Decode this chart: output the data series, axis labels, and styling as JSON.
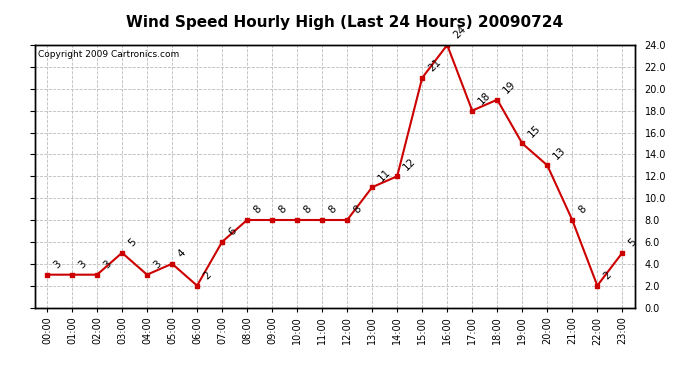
{
  "title": "Wind Speed Hourly High (Last 24 Hours) 20090724",
  "copyright": "Copyright 2009 Cartronics.com",
  "hours": [
    "00:00",
    "01:00",
    "02:00",
    "03:00",
    "04:00",
    "05:00",
    "06:00",
    "07:00",
    "08:00",
    "09:00",
    "10:00",
    "11:00",
    "12:00",
    "13:00",
    "14:00",
    "15:00",
    "16:00",
    "17:00",
    "18:00",
    "19:00",
    "20:00",
    "21:00",
    "22:00",
    "23:00"
  ],
  "values": [
    3,
    3,
    3,
    5,
    3,
    4,
    2,
    6,
    8,
    8,
    8,
    8,
    8,
    11,
    12,
    21,
    24,
    18,
    19,
    15,
    13,
    8,
    2,
    5
  ],
  "ylim": [
    0.0,
    24.0
  ],
  "yticks": [
    0.0,
    2.0,
    4.0,
    6.0,
    8.0,
    10.0,
    12.0,
    14.0,
    16.0,
    18.0,
    20.0,
    22.0,
    24.0
  ],
  "line_color": "#cc0000",
  "marker": "s",
  "marker_size": 3.5,
  "bg_color": "#ffffff",
  "grid_color": "#bbbbbb",
  "title_fontsize": 11,
  "label_fontsize": 7,
  "annotation_fontsize": 7.5,
  "copyright_fontsize": 6.5
}
